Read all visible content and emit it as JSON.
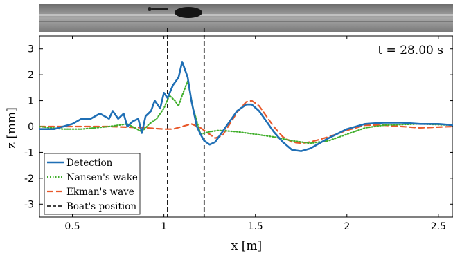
{
  "chart_data": {
    "type": "line",
    "annotation": "t = 28.00 s",
    "xlabel": "x [m]",
    "ylabel": "z [mm]",
    "xlim": [
      0.32,
      2.58
    ],
    "ylim": [
      -3.5,
      3.5
    ],
    "xticks": [
      0.5,
      1,
      1.5,
      2,
      2.5
    ],
    "xtick_labels": [
      "0.5",
      "1",
      "1.5",
      "2",
      "2.5"
    ],
    "yticks": [
      3,
      2,
      1,
      0,
      -1,
      -2,
      -3
    ],
    "ytick_labels": [
      "3",
      "2",
      "1",
      "0",
      "-1",
      "-2",
      "-3"
    ],
    "grid": false,
    "legend_position": "bottom-left",
    "boat_position": [
      1.02,
      1.22
    ],
    "series": [
      {
        "name": "Detection",
        "color": "#1f6fb5",
        "style": "solid",
        "x": [
          0.32,
          0.4,
          0.5,
          0.55,
          0.6,
          0.65,
          0.7,
          0.72,
          0.75,
          0.78,
          0.8,
          0.83,
          0.86,
          0.88,
          0.9,
          0.93,
          0.95,
          0.98,
          1.0,
          1.02,
          1.05,
          1.08,
          1.1,
          1.13,
          1.15,
          1.18,
          1.2,
          1.22,
          1.25,
          1.28,
          1.3,
          1.35,
          1.4,
          1.45,
          1.48,
          1.52,
          1.55,
          1.6,
          1.65,
          1.7,
          1.75,
          1.8,
          1.9,
          2.0,
          2.1,
          2.2,
          2.3,
          2.4,
          2.5,
          2.58
        ],
        "y": [
          -0.1,
          -0.1,
          0.1,
          0.3,
          0.3,
          0.5,
          0.3,
          0.6,
          0.3,
          0.5,
          0.0,
          0.2,
          0.3,
          -0.25,
          0.4,
          0.6,
          1.0,
          0.7,
          1.3,
          1.1,
          1.6,
          1.9,
          2.5,
          1.9,
          1.0,
          0.0,
          -0.3,
          -0.55,
          -0.7,
          -0.6,
          -0.4,
          0.1,
          0.6,
          0.85,
          0.85,
          0.6,
          0.3,
          -0.2,
          -0.6,
          -0.9,
          -0.95,
          -0.85,
          -0.45,
          -0.1,
          0.1,
          0.15,
          0.15,
          0.1,
          0.1,
          0.05
        ]
      },
      {
        "name": "Nansen's wake",
        "color": "#3fae2a",
        "style": "dotted",
        "x": [
          0.32,
          0.45,
          0.55,
          0.7,
          0.8,
          0.88,
          0.92,
          0.96,
          1.0,
          1.03,
          1.06,
          1.08,
          1.1,
          1.13,
          1.16,
          1.2,
          1.25,
          1.3,
          1.4,
          1.5,
          1.6,
          1.7,
          1.8,
          1.9,
          2.0,
          2.1,
          2.2,
          2.4,
          2.58
        ],
        "y": [
          0.0,
          -0.1,
          -0.1,
          0.0,
          0.1,
          -0.2,
          0.1,
          0.3,
          0.7,
          1.2,
          1.0,
          0.8,
          1.2,
          1.75,
          0.7,
          -0.3,
          -0.2,
          -0.15,
          -0.2,
          -0.3,
          -0.4,
          -0.55,
          -0.65,
          -0.55,
          -0.3,
          -0.05,
          0.05,
          0.1,
          0.05
        ]
      },
      {
        "name": "Ekman's wave",
        "color": "#e8592b",
        "style": "dashed",
        "x": [
          0.32,
          0.5,
          0.7,
          0.9,
          1.0,
          1.05,
          1.1,
          1.15,
          1.2,
          1.25,
          1.28,
          1.32,
          1.36,
          1.4,
          1.45,
          1.48,
          1.52,
          1.55,
          1.6,
          1.65,
          1.7,
          1.75,
          1.8,
          1.9,
          2.0,
          2.1,
          2.2,
          2.3,
          2.4,
          2.58
        ],
        "y": [
          0.0,
          0.0,
          0.0,
          -0.05,
          -0.1,
          -0.1,
          0.0,
          0.1,
          -0.05,
          -0.3,
          -0.45,
          -0.35,
          0.1,
          0.55,
          0.95,
          1.0,
          0.8,
          0.5,
          0.0,
          -0.4,
          -0.6,
          -0.65,
          -0.6,
          -0.4,
          -0.15,
          0.05,
          0.05,
          0.0,
          -0.05,
          0.0
        ]
      }
    ],
    "boat_series_name": "Boat's position",
    "boat_color": "#000000"
  }
}
